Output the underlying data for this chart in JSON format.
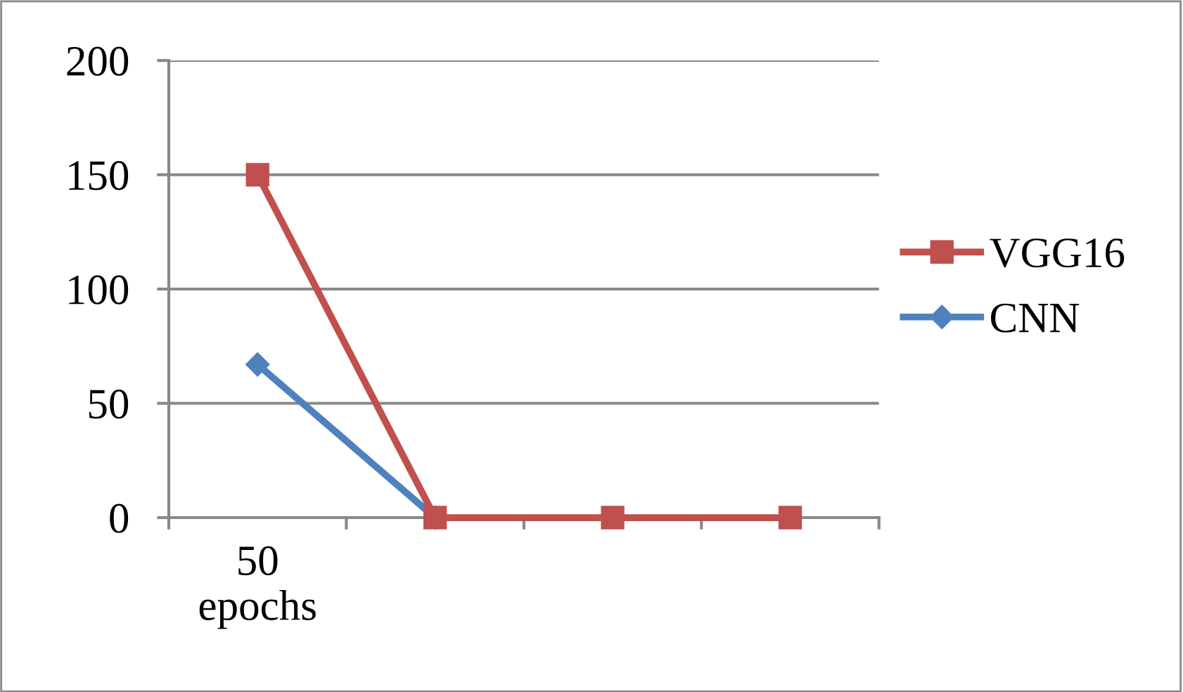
{
  "chart_data": {
    "type": "line",
    "categories": [
      "50\nepochs",
      null,
      null,
      null
    ],
    "series": [
      {
        "name": "VGG16",
        "color": "#c0504d",
        "values": [
          150,
          0,
          0,
          0
        ],
        "marker": "square"
      },
      {
        "name": "CNN",
        "color": "#4f81bd",
        "values": [
          67,
          0,
          null,
          null
        ],
        "marker": "diamond"
      }
    ],
    "ylim": [
      0,
      200
    ],
    "yticks": [
      0,
      50,
      100,
      150,
      200
    ],
    "grid": "y",
    "legend": "right",
    "line_style": "solid"
  }
}
